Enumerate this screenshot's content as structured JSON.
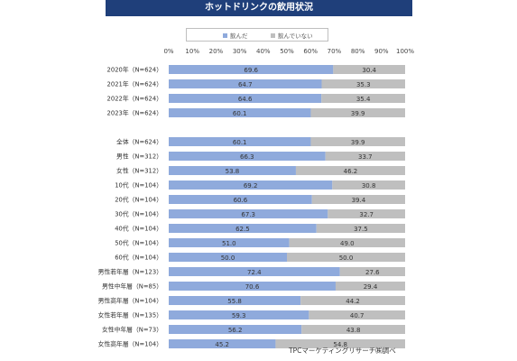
{
  "chart_data": {
    "type": "bar",
    "title": "ホットドリンクの飲用状況",
    "xlim": [
      0,
      100
    ],
    "x_ticks": [
      "0%",
      "10%",
      "20%",
      "30%",
      "40%",
      "50%",
      "60%",
      "70%",
      "80%",
      "90%",
      "100%"
    ],
    "legend_position": "top",
    "colors": {
      "drank": "#8faadc",
      "not_drank": "#bfbfbf"
    },
    "series": [
      {
        "name": "飲んだ",
        "values": [
          69.6,
          64.7,
          64.6,
          60.1,
          60.1,
          66.3,
          53.8,
          69.2,
          60.6,
          67.3,
          62.5,
          51.0,
          50.0,
          72.4,
          70.6,
          55.8,
          59.3,
          56.2,
          45.2
        ]
      },
      {
        "name": "飲んでいない",
        "values": [
          30.4,
          35.3,
          35.4,
          39.9,
          39.9,
          33.7,
          46.2,
          30.8,
          39.4,
          32.7,
          37.5,
          49.0,
          50.0,
          27.6,
          29.4,
          44.2,
          40.7,
          43.8,
          54.8
        ]
      }
    ],
    "categories": [
      "2020年（N=624）",
      "2021年（N=624）",
      "2022年（N=624）",
      "2023年（N=624）",
      "全体（N=624）",
      "男性（N=312）",
      "女性（N=312）",
      "10代（N=104）",
      "20代（N=104）",
      "30代（N=104）",
      "40代（N=104）",
      "50代（N=104）",
      "60代（N=104）",
      "男性若年層（N=123）",
      "男性中年層（N=85）",
      "男性高年層（N=104）",
      "女性若年層（N=135）",
      "女性中年層（N=73）",
      "女性高年層（N=104）"
    ],
    "value_labels_drank": [
      "69.6",
      "64.7",
      "64.6",
      "60.1",
      "60.1",
      "66.3",
      "53.8",
      "69.2",
      "60.6",
      "67.3",
      "62.5",
      "51.0",
      "50.0",
      "72.4",
      "70.6",
      "55.8",
      "59.3",
      "56.2",
      "45.2"
    ],
    "value_labels_not_drank": [
      "30.4",
      "35.3",
      "35.4",
      "39.9",
      "39.9",
      "33.7",
      "46.2",
      "30.8",
      "39.4",
      "32.7",
      "37.5",
      "49.0",
      "50.0",
      "27.6",
      "29.4",
      "44.2",
      "40.7",
      "43.8",
      "54.8"
    ]
  },
  "source": "TPCマーケティングリサーチ㈱調べ"
}
